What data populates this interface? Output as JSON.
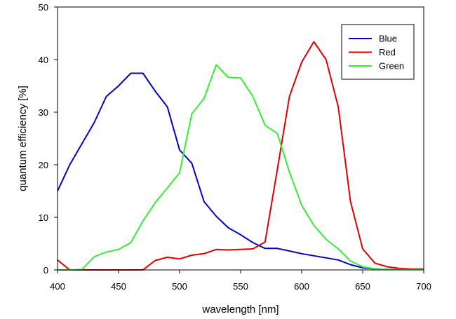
{
  "chart_data": {
    "type": "line",
    "title": "",
    "xlabel": "wavelength [nm]",
    "ylabel": "quantum efficiency [%]",
    "xlim": [
      400,
      700
    ],
    "ylim": [
      0,
      50
    ],
    "xticks": [
      400,
      450,
      500,
      550,
      600,
      650,
      700
    ],
    "yticks": [
      0,
      10,
      20,
      30,
      40,
      50
    ],
    "grid": false,
    "legend": "top-right",
    "series": [
      {
        "name": "Blue",
        "color": "#0000c8",
        "x": [
          400,
          410,
          420,
          430,
          440,
          450,
          460,
          470,
          480,
          490,
          500,
          510,
          520,
          530,
          540,
          550,
          560,
          570,
          580,
          590,
          600,
          610,
          620,
          630,
          640,
          650,
          660,
          670,
          680,
          690,
          700
        ],
        "y": [
          15,
          20,
          24,
          28,
          33,
          35,
          37.4,
          37.4,
          34,
          31,
          22.8,
          20.3,
          13,
          10.2,
          8,
          6.7,
          5.2,
          4.1,
          4.1,
          3.6,
          3.1,
          2.7,
          2.3,
          1.9,
          1.0,
          0.4,
          0.2,
          0.1,
          0.1,
          0.1,
          0.1
        ]
      },
      {
        "name": "Red",
        "color": "#e00000",
        "x": [
          400,
          410,
          420,
          430,
          440,
          450,
          460,
          470,
          480,
          490,
          500,
          510,
          520,
          530,
          540,
          550,
          560,
          570,
          580,
          590,
          600,
          610,
          620,
          630,
          640,
          650,
          660,
          670,
          680,
          690,
          700
        ],
        "y": [
          1.9,
          0,
          0,
          0,
          0,
          0,
          0,
          0,
          1.8,
          2.4,
          2.1,
          2.8,
          3.1,
          3.9,
          3.8,
          3.9,
          4.0,
          5.3,
          19,
          33,
          39.5,
          43.4,
          40,
          31,
          13,
          4,
          1.3,
          0.6,
          0.3,
          0.2,
          0.2
        ]
      },
      {
        "name": "Green",
        "color": "#33ee33",
        "x": [
          400,
          410,
          420,
          430,
          440,
          450,
          460,
          470,
          480,
          490,
          500,
          510,
          520,
          530,
          540,
          550,
          560,
          570,
          580,
          590,
          600,
          610,
          620,
          630,
          640,
          650,
          660,
          670,
          680,
          690,
          700
        ],
        "y": [
          0,
          0,
          0.1,
          2.5,
          3.4,
          3.9,
          5.2,
          9.3,
          12.8,
          15.6,
          18.5,
          29.7,
          32.6,
          39,
          36.6,
          36.5,
          33,
          27.5,
          26,
          18.6,
          12.3,
          8.5,
          5.8,
          4.0,
          1.7,
          0.6,
          0.2,
          0.1,
          0.1,
          0.1,
          0.1
        ]
      }
    ]
  }
}
